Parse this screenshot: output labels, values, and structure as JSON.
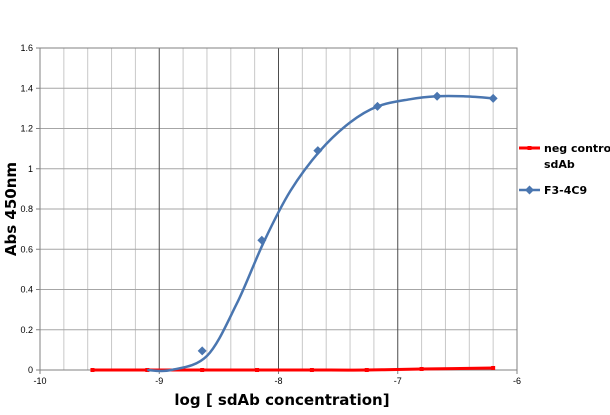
{
  "chart_data": {
    "type": "line",
    "title": "",
    "xlabel": "log [ sdAb concentration]",
    "ylabel": "Abs 450nm",
    "xlim": [
      -10,
      -6
    ],
    "ylim": [
      0,
      1.6
    ],
    "x_ticks": [
      -10,
      -9,
      -8,
      -7,
      -6
    ],
    "y_ticks": [
      0,
      0.2,
      0.4,
      0.6,
      0.8,
      1,
      1.2,
      1.4,
      1.6
    ],
    "x_tick_labels": [
      "-10",
      "-9",
      "-8",
      "-7",
      "-6"
    ],
    "y_tick_labels": [
      "0",
      "0.2",
      "0.4",
      "0.6",
      "0.8",
      "1",
      "1.2",
      "1.4",
      "1.6"
    ],
    "x_minor_step": 0.2,
    "grid": true,
    "legend_position": "right",
    "series": [
      {
        "name": "neg control sdAb",
        "legend_lines": [
          "neg control",
          "sdAb"
        ],
        "color": "#ff0000",
        "marker": "square",
        "x": [
          -9.56,
          -9.1,
          -8.64,
          -8.18,
          -7.72,
          -7.26,
          -6.8,
          -6.2
        ],
        "y": [
          0.0,
          0.0,
          0.0,
          0.0,
          0.0,
          0.0,
          0.005,
          0.01
        ]
      },
      {
        "name": "F3-4C9",
        "legend_lines": [
          "F3-4C9"
        ],
        "color": "#4a76b0",
        "marker": "diamond",
        "smooth_curve": {
          "x": [
            -9.1,
            -8.9,
            -8.6,
            -8.35,
            -8.12,
            -7.9,
            -7.65,
            -7.4,
            -7.17,
            -6.9,
            -6.67,
            -6.45,
            -6.2
          ],
          "y": [
            0.0,
            0.0,
            0.07,
            0.33,
            0.64,
            0.89,
            1.09,
            1.23,
            1.31,
            1.345,
            1.36,
            1.36,
            1.35
          ]
        },
        "x": [
          -8.64,
          -8.14,
          -7.67,
          -7.17,
          -6.67,
          -6.2
        ],
        "y": [
          0.095,
          0.645,
          1.09,
          1.31,
          1.36,
          1.35
        ]
      }
    ]
  }
}
